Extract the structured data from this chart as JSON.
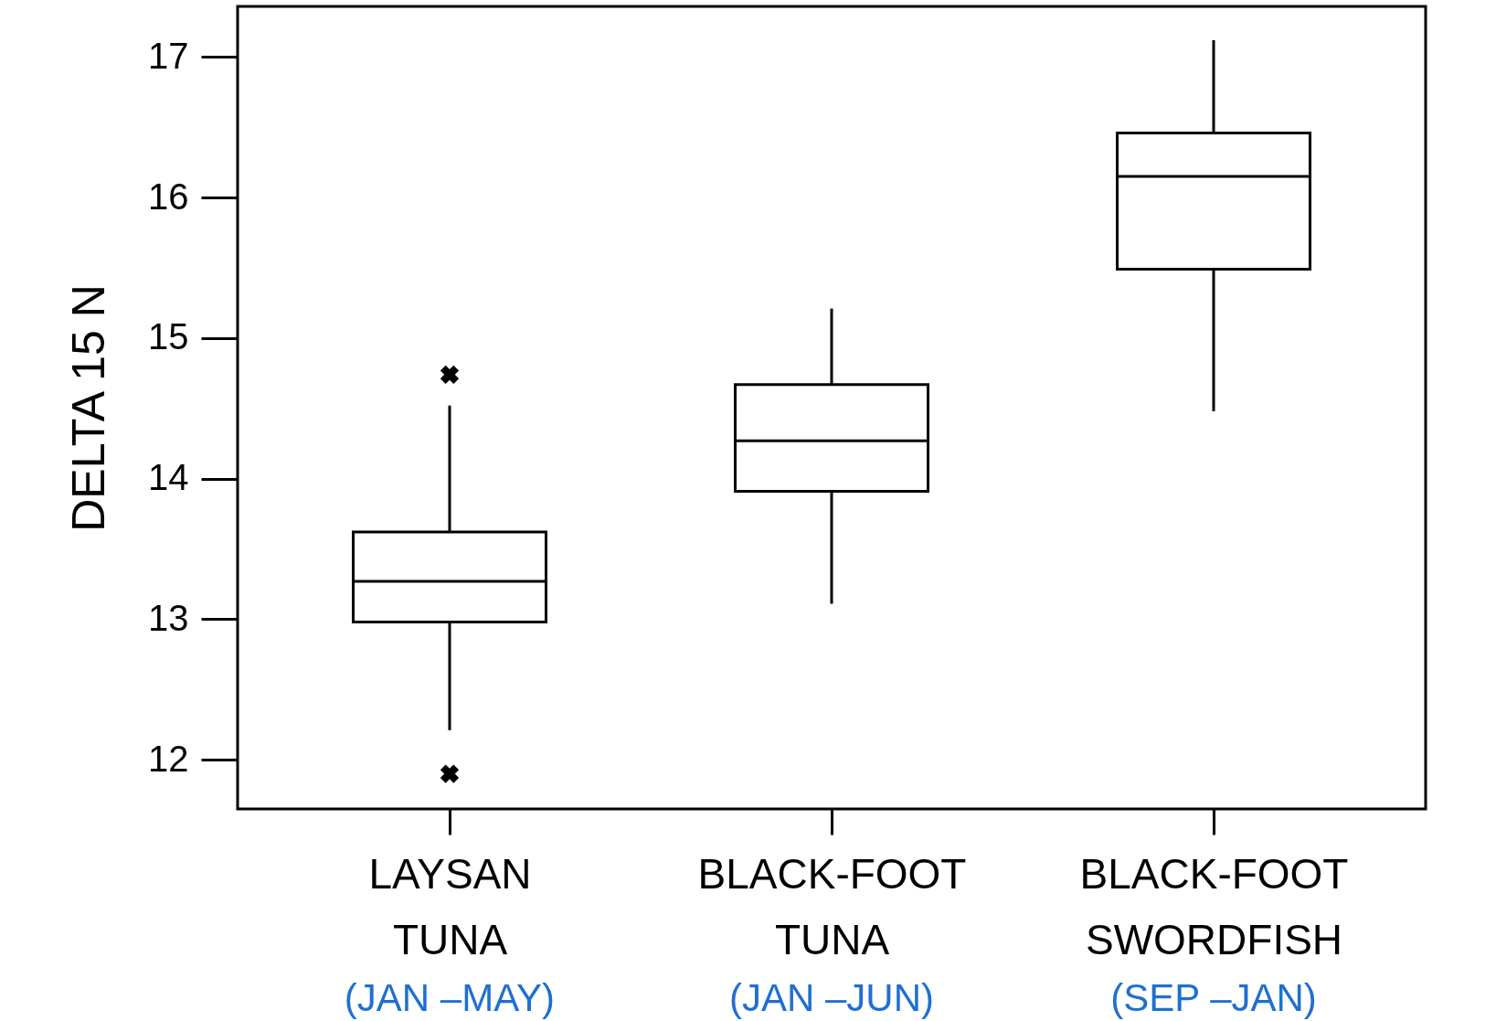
{
  "chart_data": {
    "type": "box",
    "ylabel": "DELTA 15 N",
    "categories": [
      "LAYSAN TUNA",
      "BLACK-FOOT TUNA",
      "BLACK-FOOT SWORDFISH"
    ],
    "boxes": [
      {
        "low": 12.21,
        "q1": 12.98,
        "median": 13.27,
        "q3": 13.62,
        "high": 14.52,
        "outliers": [
          14.74,
          11.9
        ]
      },
      {
        "low": 13.11,
        "q1": 13.91,
        "median": 14.27,
        "q3": 14.67,
        "high": 15.21
      },
      {
        "low": 14.48,
        "q1": 15.49,
        "median": 16.15,
        "q3": 16.46,
        "high": 17.12
      }
    ],
    "ylim": [
      11.65,
      17.36
    ],
    "yticks": [
      12,
      13,
      14,
      15,
      16,
      17
    ],
    "grid": false,
    "annotations": [
      "(JAN –MAY)",
      "(JAN –JUN)",
      "(SEP –JAN)"
    ]
  }
}
